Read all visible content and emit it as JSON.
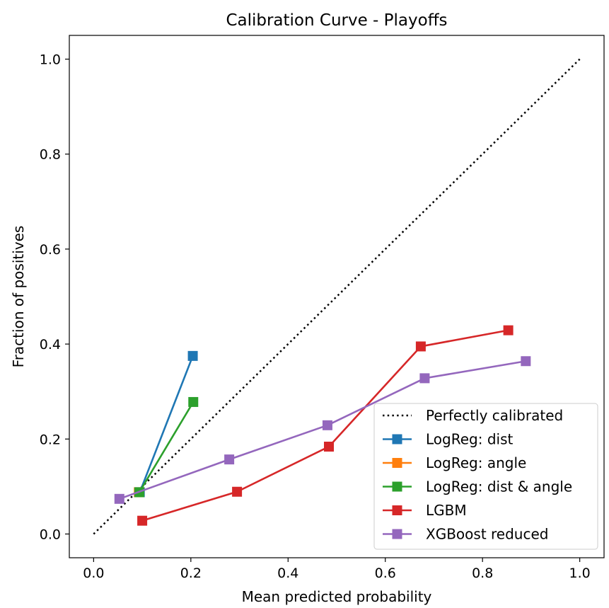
{
  "chart_data": {
    "type": "line",
    "title": "Calibration Curve - Playoffs",
    "xlabel": "Mean predicted probability",
    "ylabel": "Fraction of positives",
    "xlim": [
      -0.05,
      1.05
    ],
    "ylim": [
      -0.05,
      1.05
    ],
    "xticks": [
      "0.0",
      "0.2",
      "0.4",
      "0.6",
      "0.8",
      "1.0"
    ],
    "yticks": [
      "0.0",
      "0.2",
      "0.4",
      "0.6",
      "0.8",
      "1.0"
    ],
    "grid": false,
    "legend_position": "lower-right",
    "reference": {
      "name": "Perfectly calibrated",
      "x": [
        0,
        1
      ],
      "y": [
        0,
        1
      ],
      "color": "#000000",
      "style": "dotted"
    },
    "series": [
      {
        "name": "LogReg: dist",
        "color": "#1f77b4",
        "x": [
          0.095,
          0.204
        ],
        "y": [
          0.088,
          0.375
        ]
      },
      {
        "name": "LogReg: angle",
        "color": "#ff7f0e",
        "x": [
          0.093
        ],
        "y": [
          0.088
        ]
      },
      {
        "name": "LogReg: dist & angle",
        "color": "#2ca02c",
        "x": [
          0.094,
          0.205
        ],
        "y": [
          0.088,
          0.278
        ]
      },
      {
        "name": "LGBM",
        "color": "#d62728",
        "x": [
          0.1,
          0.295,
          0.484,
          0.673,
          0.853
        ],
        "y": [
          0.028,
          0.089,
          0.184,
          0.395,
          0.429
        ]
      },
      {
        "name": "XGBoost reduced",
        "color": "#9467bd",
        "x": [
          0.053,
          0.279,
          0.481,
          0.681,
          0.889
        ],
        "y": [
          0.074,
          0.157,
          0.229,
          0.328,
          0.364
        ]
      }
    ]
  }
}
